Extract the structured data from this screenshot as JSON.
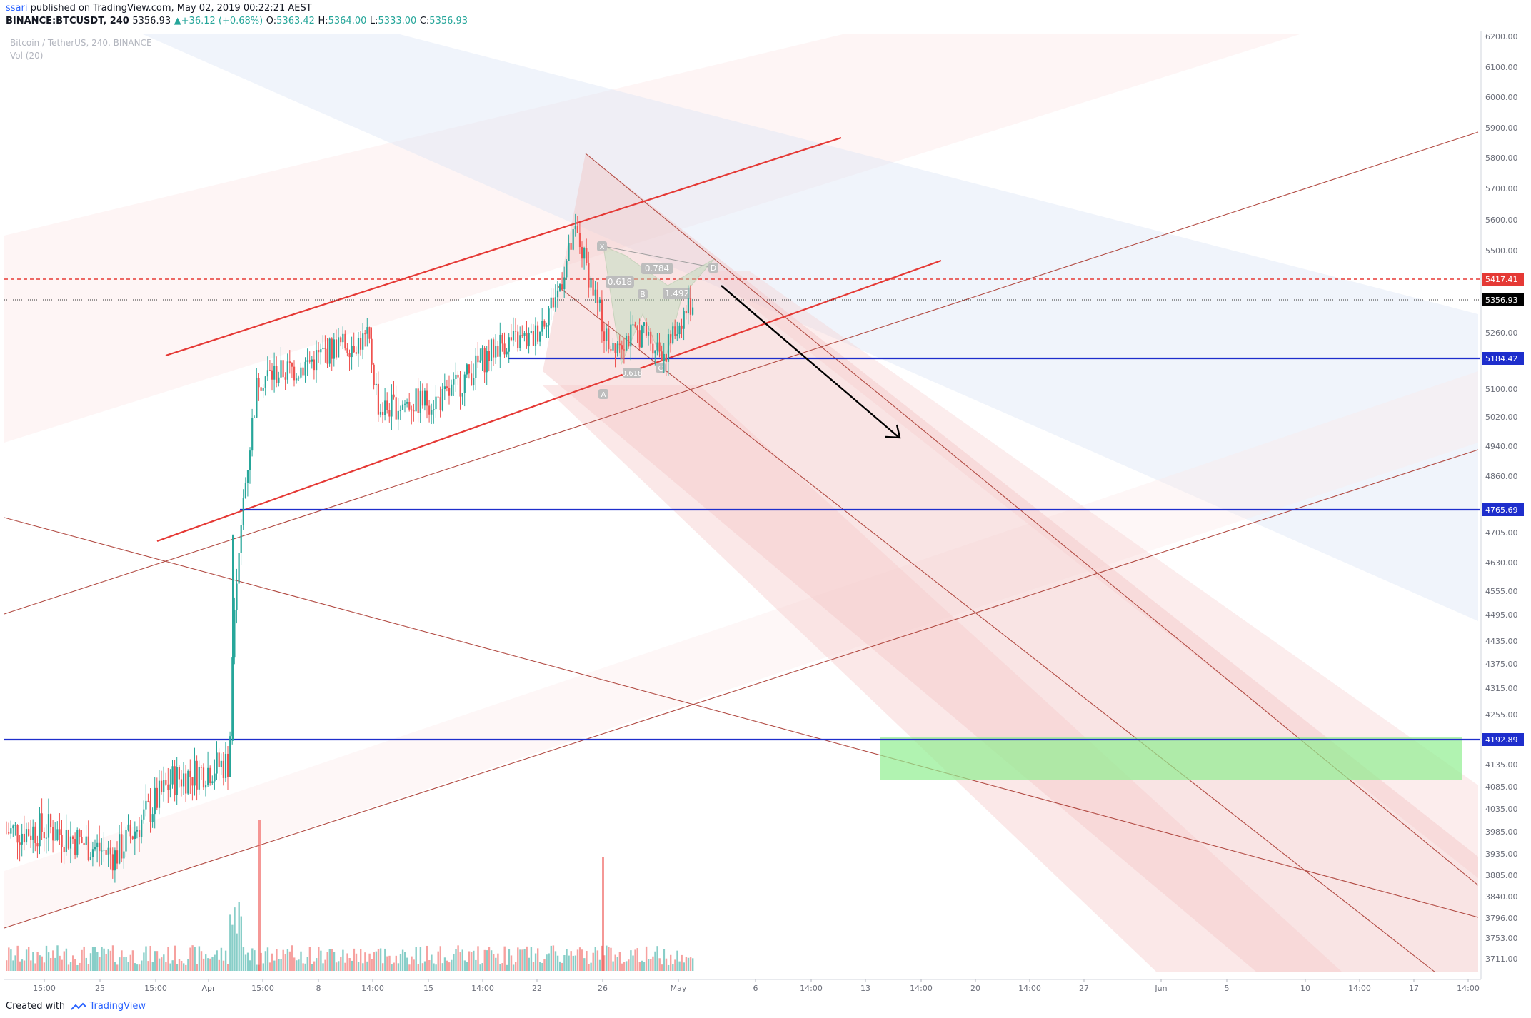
{
  "header": {
    "user": "ssari",
    "published": " published on TradingView.com, May 02, 2019 00:22:21 AEST",
    "symbol": "BINANCE:BTCUSDT, 240",
    "price": "5356.93",
    "change": "+36.12 (+0.68%)",
    "o_label": "O:",
    "o": "5363.42",
    "h_label": "H:",
    "h": "5364.00",
    "l_label": "L:",
    "l": "5333.00",
    "c_label": "C:",
    "c": "5356.93"
  },
  "legend": {
    "title": "Bitcoin / TetherUS, 240, BINANCE",
    "vol": "Vol (20)"
  },
  "footer": {
    "created": "Created with",
    "brand": "TradingView"
  },
  "colors": {
    "up": "#26a69a",
    "down": "#ef5350",
    "channel": "#e53935",
    "support": "#1e2ecc",
    "target_zone": "#90ee90"
  },
  "chart_data": {
    "type": "candlestick",
    "y_ticks": [
      6200,
      6100,
      6000,
      5900,
      5800,
      5700,
      5600,
      5500,
      5417.41,
      5356.93,
      5260,
      5184.42,
      5100,
      5020,
      4940,
      4860,
      4765.69,
      4705,
      4630,
      4555,
      4495,
      4435,
      4375,
      4315,
      4255,
      4192.89,
      4135,
      4085,
      4035,
      3985,
      3935,
      3885,
      3840,
      3796,
      3753,
      3711
    ],
    "y_labels": [
      "6200.00",
      "6100.00",
      "6000.00",
      "5900.00",
      "5800.00",
      "5700.00",
      "5600.00",
      "5500.00",
      "5417.41",
      "5356.93",
      "5260.00",
      "5184.42",
      "5100.00",
      "5020.00",
      "4940.00",
      "4860.00",
      "4765.69",
      "4705.00",
      "4630.00",
      "4555.00",
      "4495.00",
      "4435.00",
      "4375.00",
      "4315.00",
      "4255.00",
      "4192.89",
      "4135.00",
      "4085.00",
      "4035.00",
      "3985.00",
      "3935.00",
      "3885.00",
      "3840.00",
      "3796.00",
      "3753.00",
      "3711.00"
    ],
    "x_ticks": [
      "15:00",
      "25",
      "15:00",
      "Apr",
      "15:00",
      "8",
      "14:00",
      "15",
      "14:00",
      "22",
      "26",
      "May",
      "6",
      "14:00",
      "13",
      "14:00",
      "20",
      "14:00",
      "27",
      "Jun",
      "5",
      "10",
      "14:00",
      "17",
      "14:00"
    ],
    "price_tags": [
      {
        "label": "5417.41",
        "value": 5417.41
      },
      {
        "label": "5356.93",
        "value": 5356.93
      },
      {
        "label": "5184.42",
        "value": 5184.42
      },
      {
        "label": "4765.69",
        "value": 4765.69
      },
      {
        "label": "4192.89",
        "value": 4192.89
      }
    ],
    "horizontal_levels": [
      {
        "name": "support-5184",
        "value": 5184.42
      },
      {
        "name": "support-4765",
        "value": 4765.69
      },
      {
        "name": "support-4192",
        "value": 4192.89
      }
    ],
    "dashed_level": 5417.41,
    "current_price": 5356.93,
    "target_zone": {
      "top": 4200,
      "bottom": 4100
    },
    "harmonic_labels": [
      "0.784",
      "0.618",
      "1.492",
      "0.618",
      "B",
      "D",
      "X",
      "A",
      "C"
    ],
    "y_range": [
      3700,
      6210
    ]
  }
}
